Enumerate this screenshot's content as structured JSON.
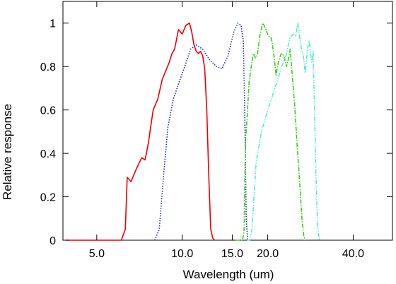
{
  "chart_data": {
    "type": "line",
    "xlabel": "Wavelength (um)",
    "ylabel": "Relative response",
    "x_scale": "log",
    "xlim": [
      3.8,
      55.0
    ],
    "ylim": [
      0,
      1.1
    ],
    "x_ticks": [
      {
        "value": 5.0,
        "label": "5.0"
      },
      {
        "value": 10.0,
        "label": "10.0"
      },
      {
        "value": 15.0,
        "label": "15.0"
      },
      {
        "value": 20.0,
        "label": "20.0"
      },
      {
        "value": 40.0,
        "label": "40.0"
      }
    ],
    "y_ticks": [
      {
        "value": 0,
        "label": "0"
      },
      {
        "value": 0.2,
        "label": "0.2"
      },
      {
        "value": 0.4,
        "label": "0.4"
      },
      {
        "value": 0.6,
        "label": "0.6"
      },
      {
        "value": 0.8,
        "label": "0.8"
      },
      {
        "value": 1.0,
        "label": "1"
      }
    ],
    "grid": false,
    "legend": "none",
    "series": [
      {
        "color": "#ee0000",
        "dash": "solid",
        "points": [
          [
            3.9,
            0
          ],
          [
            6.1,
            0
          ],
          [
            6.3,
            0.05
          ],
          [
            6.4,
            0.29
          ],
          [
            6.6,
            0.27
          ],
          [
            6.9,
            0.33
          ],
          [
            7.2,
            0.38
          ],
          [
            7.4,
            0.37
          ],
          [
            7.6,
            0.45
          ],
          [
            7.9,
            0.6
          ],
          [
            8.2,
            0.65
          ],
          [
            8.5,
            0.74
          ],
          [
            9.0,
            0.82
          ],
          [
            9.2,
            0.86
          ],
          [
            9.4,
            0.88
          ],
          [
            9.7,
            0.97
          ],
          [
            10.0,
            0.95
          ],
          [
            10.3,
            0.99
          ],
          [
            10.6,
            1.0
          ],
          [
            10.8,
            0.96
          ],
          [
            11.0,
            0.9
          ],
          [
            11.2,
            0.87
          ],
          [
            11.4,
            0.86
          ],
          [
            11.6,
            0.87
          ],
          [
            11.8,
            0.85
          ],
          [
            12.0,
            0.79
          ],
          [
            12.2,
            0.6
          ],
          [
            12.4,
            0.3
          ],
          [
            12.6,
            0.05
          ],
          [
            12.8,
            0.01
          ],
          [
            13.0,
            0
          ]
        ]
      },
      {
        "color": "#1d2db8",
        "dash": "dotted",
        "points": [
          [
            8.0,
            0
          ],
          [
            8.3,
            0.05
          ],
          [
            8.6,
            0.3
          ],
          [
            8.9,
            0.52
          ],
          [
            9.3,
            0.65
          ],
          [
            9.7,
            0.72
          ],
          [
            10.2,
            0.8
          ],
          [
            10.7,
            0.88
          ],
          [
            11.2,
            0.9
          ],
          [
            11.8,
            0.88
          ],
          [
            12.5,
            0.83
          ],
          [
            13.2,
            0.8
          ],
          [
            13.8,
            0.79
          ],
          [
            14.5,
            0.85
          ],
          [
            15.2,
            0.96
          ],
          [
            15.7,
            1.0
          ],
          [
            16.1,
            0.99
          ],
          [
            16.4,
            0.92
          ],
          [
            16.6,
            0.6
          ],
          [
            16.8,
            0.1
          ],
          [
            17.0,
            0
          ]
        ]
      },
      {
        "color": "#3acd1a",
        "dash": "dashdot",
        "points": [
          [
            15.4,
            0
          ],
          [
            16.3,
            0
          ],
          [
            16.5,
            0.04
          ],
          [
            16.7,
            0.46
          ],
          [
            16.9,
            0.55
          ],
          [
            17.2,
            0.73
          ],
          [
            17.5,
            0.8
          ],
          [
            17.8,
            0.86
          ],
          [
            18.1,
            0.84
          ],
          [
            18.4,
            0.86
          ],
          [
            18.8,
            0.95
          ],
          [
            19.2,
            1.0
          ],
          [
            19.6,
            0.98
          ],
          [
            20.1,
            0.94
          ],
          [
            20.6,
            0.93
          ],
          [
            21.0,
            0.86
          ],
          [
            21.4,
            0.76
          ],
          [
            21.8,
            0.82
          ],
          [
            22.3,
            0.86
          ],
          [
            22.8,
            0.85
          ],
          [
            23.3,
            0.8
          ],
          [
            23.7,
            0.84
          ],
          [
            24.0,
            0.88
          ],
          [
            24.4,
            0.76
          ],
          [
            24.9,
            0.62
          ],
          [
            25.4,
            0.43
          ],
          [
            25.9,
            0.27
          ],
          [
            26.4,
            0.1
          ],
          [
            26.8,
            0.02
          ],
          [
            27.1,
            0
          ]
        ]
      },
      {
        "color": "#52ecd0",
        "dash": "dashdotdot",
        "points": [
          [
            16.9,
            0
          ],
          [
            17.3,
            0
          ],
          [
            17.6,
            0.05
          ],
          [
            18.2,
            0.36
          ],
          [
            19.0,
            0.5
          ],
          [
            20.0,
            0.6
          ],
          [
            21.2,
            0.7
          ],
          [
            22.4,
            0.8
          ],
          [
            23.2,
            0.85
          ],
          [
            23.9,
            0.93
          ],
          [
            24.6,
            0.95
          ],
          [
            25.1,
            0.94
          ],
          [
            25.5,
            1.0
          ],
          [
            25.9,
            0.94
          ],
          [
            26.3,
            0.88
          ],
          [
            26.7,
            0.85
          ],
          [
            27.1,
            0.77
          ],
          [
            27.6,
            0.88
          ],
          [
            28.0,
            0.92
          ],
          [
            28.3,
            0.86
          ],
          [
            28.6,
            0.82
          ],
          [
            28.9,
            0.87
          ],
          [
            29.2,
            0.63
          ],
          [
            29.6,
            0.27
          ],
          [
            30.0,
            0.06
          ],
          [
            30.4,
            0
          ]
        ]
      }
    ]
  }
}
